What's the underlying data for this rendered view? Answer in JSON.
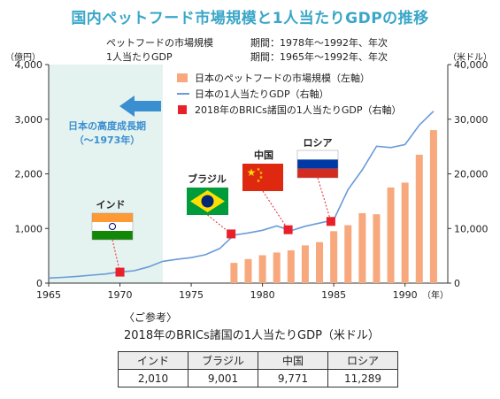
{
  "title": "国内ペットフード市場規模と1人当たりGDPの推移",
  "subtitle_rows": [
    {
      "series": "ペットフードの市場規模",
      "period": "期間：1978年～1992年、年次"
    },
    {
      "series": "1人当たりGDP",
      "period": "期間：1965年～1992年、年次"
    }
  ],
  "axis_units": {
    "left": "（億円）",
    "right": "（米ドル）",
    "x": "（年）"
  },
  "colors": {
    "bar": "#f7a87c",
    "line": "#6a9bd8",
    "marker": "#e8202a",
    "shade": "#e4f2f0",
    "arrow": "#3a8fd0",
    "title": "#3aa6c8"
  },
  "chart_data": {
    "type": "bar+line",
    "title": "国内ペットフード市場規模と1人当たりGDPの推移",
    "x_ticks": [
      1965,
      1970,
      1975,
      1980,
      1985,
      1990
    ],
    "x_tick_labels": [
      "1965",
      "1970",
      "1975",
      "1980",
      "1985",
      "1990"
    ],
    "xlim": [
      1965,
      1993
    ],
    "ylim_left": [
      0,
      4000
    ],
    "ylim_right": [
      0,
      40000
    ],
    "left_ticks": [
      "0",
      "1,000",
      "2,000",
      "3,000",
      "4,000"
    ],
    "right_ticks": [
      "0",
      "10,000",
      "20,000",
      "30,000",
      "40,000"
    ],
    "grid": false,
    "legend_position": "top-right",
    "series": [
      {
        "name": "日本のペットフードの市場規模（左軸）",
        "type": "bar",
        "axis": "left",
        "x": [
          1978,
          1979,
          1980,
          1981,
          1982,
          1983,
          1984,
          1985,
          1986,
          1987,
          1988,
          1989,
          1990,
          1991,
          1992
        ],
        "values": [
          370,
          440,
          510,
          560,
          600,
          690,
          750,
          950,
          1060,
          1280,
          1260,
          1750,
          1840,
          2350,
          2800
        ]
      },
      {
        "name": "日本の1人当たりGDP（右軸）",
        "type": "line",
        "axis": "right",
        "x": [
          1965,
          1966,
          1967,
          1968,
          1969,
          1970,
          1971,
          1972,
          1973,
          1974,
          1975,
          1976,
          1977,
          1978,
          1979,
          1980,
          1981,
          1982,
          1983,
          1984,
          1985,
          1986,
          1987,
          1988,
          1989,
          1990,
          1991,
          1992
        ],
        "values": [
          930,
          1060,
          1230,
          1450,
          1670,
          2040,
          2270,
          2970,
          3990,
          4350,
          4660,
          5200,
          6340,
          8790,
          9190,
          9660,
          10460,
          9580,
          10420,
          10980,
          11580,
          17110,
          20750,
          25050,
          24810,
          25360,
          28920,
          31460
        ]
      },
      {
        "name": "2018年のBRICs諸国の1人当たりGDP（右軸）",
        "type": "scatter",
        "axis": "right",
        "points": [
          {
            "country": "インド",
            "x": 1970,
            "value": 2010
          },
          {
            "country": "ブラジル",
            "x": 1977.8,
            "value": 9001
          },
          {
            "country": "中国",
            "x": 1981.8,
            "value": 9771
          },
          {
            "country": "ロシア",
            "x": 1984.8,
            "value": 11289
          }
        ]
      }
    ],
    "annotation": {
      "text_line1": "日本の高度成長期",
      "text_line2": "（～1973年）",
      "shade_x": [
        1965,
        1973
      ]
    }
  },
  "reference": {
    "caption_1": "〈ご参考〉",
    "caption_2": "2018年のBRICs諸国の1人当たりGDP（米ドル）",
    "headers": [
      "インド",
      "ブラジル",
      "中国",
      "ロシア"
    ],
    "values": [
      "2,010",
      "9,001",
      "9,771",
      "11,289"
    ]
  }
}
